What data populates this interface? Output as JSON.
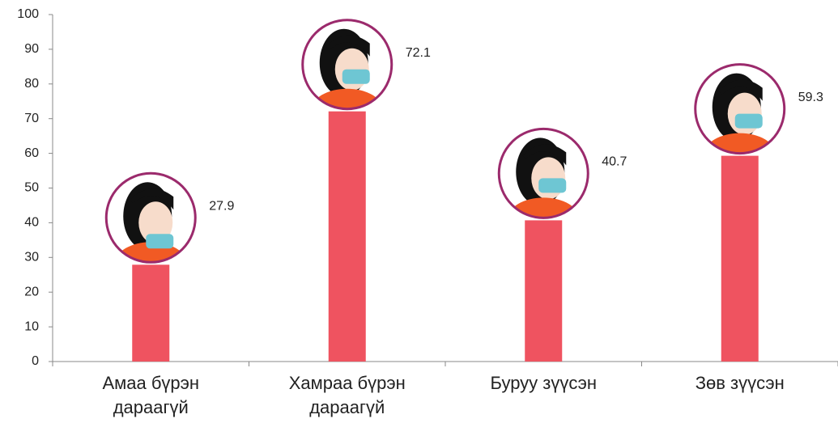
{
  "chart_data": {
    "type": "bar",
    "categories": [
      "Амаа бүрэн дараагүй",
      "Хамраа бүрэн дараагүй",
      "Буруу зүүсэн",
      "Зөв зүүсэн"
    ],
    "values": [
      27.9,
      72.1,
      40.7,
      59.3
    ],
    "color": "#ef5360",
    "ylim": [
      0,
      100
    ],
    "yticks": [
      0,
      10,
      20,
      30,
      40,
      50,
      60,
      70,
      80,
      90,
      100
    ],
    "grid": false
  }
}
